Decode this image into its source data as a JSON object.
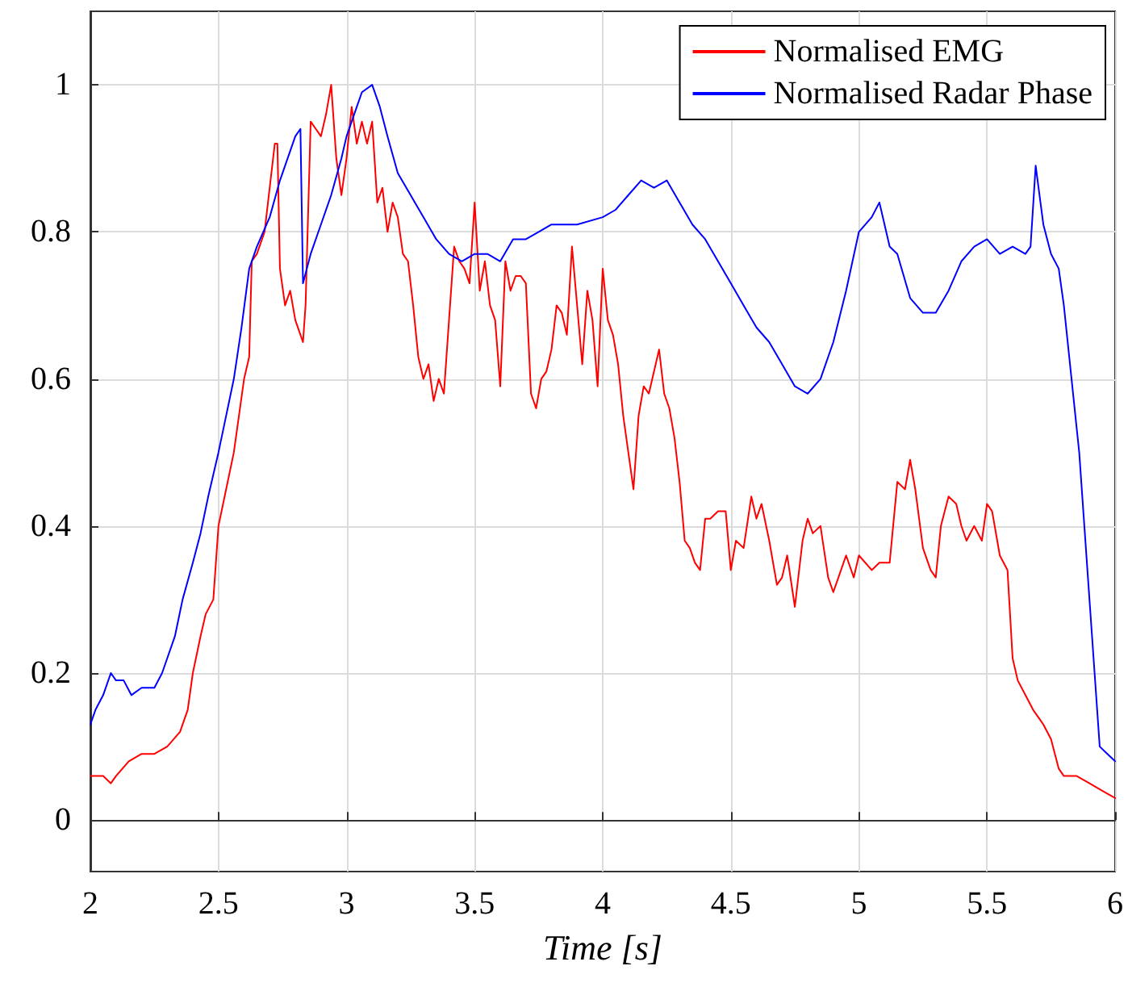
{
  "chart_data": {
    "type": "line",
    "xlabel": "Time [s]",
    "xlim": [
      2,
      6
    ],
    "xticks": [
      2,
      2.5,
      3,
      3.5,
      4,
      4.5,
      5,
      5.5,
      6
    ],
    "ylim": [
      -0.07,
      1.1
    ],
    "yticks": [
      0,
      0.2,
      0.4,
      0.6,
      0.8,
      1
    ],
    "grid": true,
    "legend": "top right",
    "marker": "none",
    "line_style": "solid",
    "series": [
      {
        "name": "Normalised EMG",
        "color": "#ff0000",
        "x": [
          2.0,
          2.05,
          2.08,
          2.1,
          2.15,
          2.2,
          2.25,
          2.3,
          2.35,
          2.38,
          2.4,
          2.43,
          2.45,
          2.48,
          2.5,
          2.53,
          2.56,
          2.6,
          2.62,
          2.63,
          2.65,
          2.68,
          2.7,
          2.72,
          2.73,
          2.74,
          2.76,
          2.78,
          2.8,
          2.82,
          2.83,
          2.84,
          2.86,
          2.88,
          2.9,
          2.92,
          2.94,
          2.96,
          2.98,
          3.0,
          3.02,
          3.04,
          3.06,
          3.08,
          3.1,
          3.12,
          3.14,
          3.16,
          3.18,
          3.2,
          3.22,
          3.24,
          3.26,
          3.28,
          3.3,
          3.32,
          3.34,
          3.36,
          3.38,
          3.4,
          3.42,
          3.44,
          3.46,
          3.48,
          3.5,
          3.52,
          3.54,
          3.56,
          3.58,
          3.6,
          3.62,
          3.64,
          3.66,
          3.68,
          3.7,
          3.72,
          3.74,
          3.76,
          3.78,
          3.8,
          3.82,
          3.84,
          3.86,
          3.88,
          3.9,
          3.92,
          3.94,
          3.96,
          3.98,
          4.0,
          4.02,
          4.04,
          4.06,
          4.08,
          4.1,
          4.12,
          4.14,
          4.16,
          4.18,
          4.2,
          4.22,
          4.24,
          4.26,
          4.28,
          4.3,
          4.32,
          4.34,
          4.36,
          4.38,
          4.4,
          4.42,
          4.45,
          4.48,
          4.5,
          4.52,
          4.55,
          4.58,
          4.6,
          4.62,
          4.65,
          4.68,
          4.7,
          4.72,
          4.75,
          4.78,
          4.8,
          4.82,
          4.85,
          4.88,
          4.9,
          4.92,
          4.95,
          4.98,
          5.0,
          5.05,
          5.08,
          5.12,
          5.15,
          5.18,
          5.2,
          5.22,
          5.25,
          5.28,
          5.3,
          5.32,
          5.35,
          5.38,
          5.4,
          5.42,
          5.45,
          5.48,
          5.5,
          5.52,
          5.55,
          5.58,
          5.6,
          5.62,
          5.65,
          5.68,
          5.7,
          5.72,
          5.75,
          5.78,
          5.8,
          5.85,
          5.9,
          5.95,
          6.0
        ],
        "values": [
          0.06,
          0.06,
          0.05,
          0.06,
          0.08,
          0.09,
          0.09,
          0.1,
          0.12,
          0.15,
          0.2,
          0.25,
          0.28,
          0.3,
          0.4,
          0.45,
          0.5,
          0.6,
          0.63,
          0.76,
          0.77,
          0.8,
          0.86,
          0.92,
          0.92,
          0.75,
          0.7,
          0.72,
          0.68,
          0.66,
          0.65,
          0.7,
          0.95,
          0.94,
          0.93,
          0.96,
          1.0,
          0.9,
          0.85,
          0.9,
          0.97,
          0.92,
          0.95,
          0.92,
          0.95,
          0.84,
          0.86,
          0.8,
          0.84,
          0.82,
          0.77,
          0.76,
          0.7,
          0.63,
          0.6,
          0.62,
          0.57,
          0.6,
          0.58,
          0.68,
          0.78,
          0.76,
          0.75,
          0.73,
          0.84,
          0.72,
          0.76,
          0.7,
          0.68,
          0.59,
          0.76,
          0.72,
          0.74,
          0.74,
          0.73,
          0.58,
          0.56,
          0.6,
          0.61,
          0.64,
          0.7,
          0.69,
          0.66,
          0.78,
          0.7,
          0.62,
          0.72,
          0.68,
          0.59,
          0.75,
          0.68,
          0.66,
          0.62,
          0.55,
          0.5,
          0.45,
          0.55,
          0.59,
          0.58,
          0.61,
          0.64,
          0.58,
          0.56,
          0.52,
          0.46,
          0.38,
          0.37,
          0.35,
          0.34,
          0.41,
          0.41,
          0.42,
          0.42,
          0.34,
          0.38,
          0.37,
          0.44,
          0.41,
          0.43,
          0.38,
          0.32,
          0.33,
          0.36,
          0.29,
          0.38,
          0.41,
          0.39,
          0.4,
          0.33,
          0.31,
          0.33,
          0.36,
          0.33,
          0.36,
          0.34,
          0.35,
          0.35,
          0.46,
          0.45,
          0.49,
          0.45,
          0.37,
          0.34,
          0.33,
          0.4,
          0.44,
          0.43,
          0.4,
          0.38,
          0.4,
          0.38,
          0.43,
          0.42,
          0.36,
          0.34,
          0.22,
          0.19,
          0.17,
          0.15,
          0.14,
          0.13,
          0.11,
          0.07,
          0.06,
          0.06,
          0.05,
          0.04,
          0.03
        ]
      },
      {
        "name": "Normalised Radar Phase",
        "color": "#0000ff",
        "x": [
          2.0,
          2.02,
          2.05,
          2.08,
          2.1,
          2.13,
          2.16,
          2.2,
          2.25,
          2.28,
          2.3,
          2.33,
          2.36,
          2.4,
          2.43,
          2.46,
          2.5,
          2.53,
          2.56,
          2.59,
          2.62,
          2.65,
          2.7,
          2.74,
          2.78,
          2.8,
          2.82,
          2.83,
          2.86,
          2.9,
          2.94,
          2.98,
          3.0,
          3.04,
          3.06,
          3.1,
          3.13,
          3.16,
          3.2,
          3.25,
          3.3,
          3.35,
          3.4,
          3.45,
          3.5,
          3.55,
          3.6,
          3.65,
          3.7,
          3.75,
          3.8,
          3.9,
          4.0,
          4.05,
          4.1,
          4.15,
          4.2,
          4.25,
          4.3,
          4.35,
          4.4,
          4.45,
          4.5,
          4.55,
          4.6,
          4.65,
          4.7,
          4.75,
          4.8,
          4.85,
          4.9,
          4.95,
          5.0,
          5.05,
          5.08,
          5.12,
          5.15,
          5.2,
          5.25,
          5.3,
          5.35,
          5.4,
          5.45,
          5.5,
          5.55,
          5.6,
          5.65,
          5.67,
          5.69,
          5.72,
          5.75,
          5.78,
          5.8,
          5.83,
          5.86,
          5.88,
          5.9,
          5.92,
          5.94,
          5.97,
          6.0
        ],
        "values": [
          0.13,
          0.15,
          0.17,
          0.2,
          0.19,
          0.19,
          0.17,
          0.18,
          0.18,
          0.2,
          0.22,
          0.25,
          0.3,
          0.35,
          0.39,
          0.44,
          0.5,
          0.55,
          0.6,
          0.67,
          0.75,
          0.78,
          0.82,
          0.87,
          0.91,
          0.93,
          0.94,
          0.73,
          0.77,
          0.81,
          0.85,
          0.9,
          0.93,
          0.97,
          0.99,
          1.0,
          0.97,
          0.93,
          0.88,
          0.85,
          0.82,
          0.79,
          0.77,
          0.76,
          0.77,
          0.77,
          0.76,
          0.79,
          0.79,
          0.8,
          0.81,
          0.81,
          0.82,
          0.83,
          0.85,
          0.87,
          0.86,
          0.87,
          0.84,
          0.81,
          0.79,
          0.76,
          0.73,
          0.7,
          0.67,
          0.65,
          0.62,
          0.59,
          0.58,
          0.6,
          0.65,
          0.72,
          0.8,
          0.82,
          0.84,
          0.78,
          0.77,
          0.71,
          0.69,
          0.69,
          0.72,
          0.76,
          0.78,
          0.79,
          0.77,
          0.78,
          0.77,
          0.78,
          0.89,
          0.81,
          0.77,
          0.75,
          0.7,
          0.6,
          0.5,
          0.4,
          0.3,
          0.2,
          0.1,
          0.09,
          0.08
        ]
      }
    ]
  }
}
